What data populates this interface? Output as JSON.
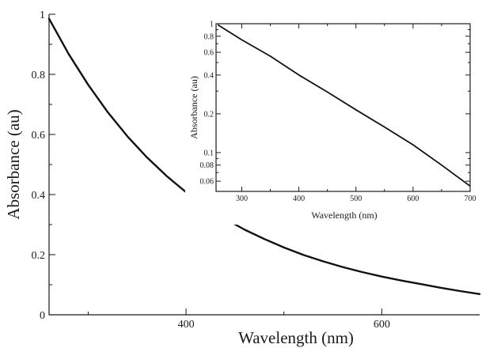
{
  "chart_data": [
    {
      "id": "main",
      "type": "line",
      "title": "",
      "xlabel": "Wavelength (nm)",
      "ylabel": "Absorbance (au)",
      "xlim": [
        260,
        700
      ],
      "ylim": [
        0,
        1
      ],
      "xscale": "linear",
      "yscale": "linear",
      "xticks": [
        400,
        600
      ],
      "xticks_minor": [
        300,
        500
      ],
      "yticks": [
        0,
        0.2,
        0.4,
        0.6,
        0.8,
        1
      ],
      "yticks_minor": [
        0.1,
        0.3,
        0.5,
        0.7,
        0.9
      ],
      "ytick_labels": [
        "0",
        "0.2",
        "0.4",
        "0.6",
        "0.8",
        "1"
      ],
      "grid": false,
      "series": [
        {
          "color": "#111111",
          "x": [
            260,
            280,
            300,
            320,
            340,
            360,
            380,
            400,
            420,
            440,
            460,
            480,
            500,
            520,
            540,
            560,
            580,
            600,
            620,
            640,
            660,
            680,
            700
          ],
          "y": [
            0.985,
            0.868,
            0.765,
            0.674,
            0.594,
            0.524,
            0.462,
            0.408,
            0.361,
            0.319,
            0.283,
            0.252,
            0.224,
            0.199,
            0.178,
            0.159,
            0.142,
            0.127,
            0.114,
            0.102,
            0.09,
            0.079,
            0.069
          ]
        }
      ]
    },
    {
      "id": "inset",
      "type": "line",
      "title": "",
      "xlabel": "Wavelength (nm)",
      "ylabel": "Absorbance (au)",
      "xlim": [
        255,
        700
      ],
      "ylim": [
        0.05,
        1
      ],
      "xscale": "linear",
      "yscale": "log",
      "xticks": [
        300,
        400,
        500,
        600,
        700
      ],
      "xtick_labels": [
        "300",
        "400",
        "500",
        "600",
        "700"
      ],
      "yticks": [
        0.06,
        0.08,
        0.1,
        0.2,
        0.4,
        0.6,
        0.8,
        1
      ],
      "ytick_labels": [
        "0.06",
        "0.08",
        "0.1",
        "0.2",
        "0.4",
        "0.6",
        "0.8",
        "1"
      ],
      "yticks_minor": [
        0.05,
        0.07,
        0.09,
        0.3,
        0.5,
        0.7,
        0.9
      ],
      "grid": false,
      "series": [
        {
          "color": "#111111",
          "x": [
            258,
            300,
            350,
            400,
            450,
            500,
            550,
            600,
            650,
            700
          ],
          "y": [
            0.98,
            0.75,
            0.56,
            0.4,
            0.295,
            0.215,
            0.158,
            0.115,
            0.08,
            0.055
          ]
        }
      ]
    }
  ]
}
